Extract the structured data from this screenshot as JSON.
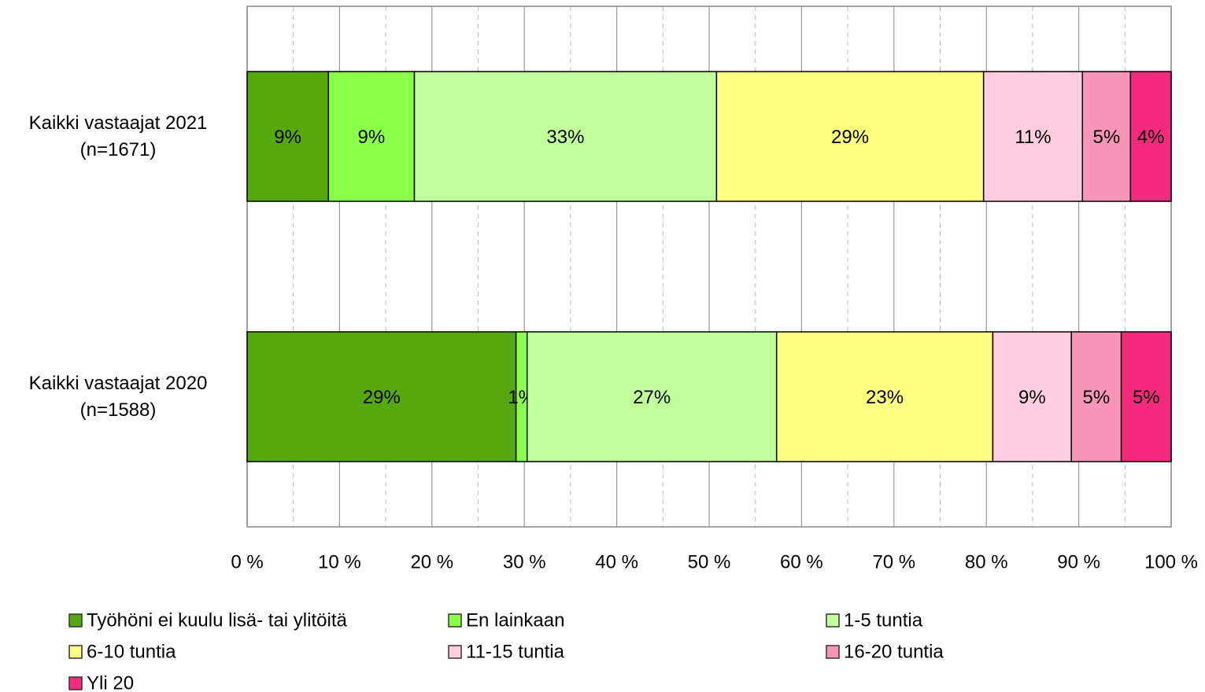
{
  "chart_data": {
    "type": "stacked_barh",
    "categories": [
      "Kaikki vastaajat 2021\n(n=1671)",
      "Kaikki vastaajat 2020\n(n=1588)"
    ],
    "series": [
      {
        "name": "Työhöni ei kuulu lisä- tai ylitöitä",
        "color": "#56a80f",
        "values": [
          8.8,
          29.1
        ],
        "value_labels": [
          "9%",
          "29%"
        ]
      },
      {
        "name": "En lainkaan",
        "color": "#8aff4a",
        "values": [
          9.3,
          1.2
        ],
        "value_labels": [
          "9%",
          "1%"
        ]
      },
      {
        "name": "1-5 tuntia",
        "color": "#c0ff9a",
        "values": [
          32.7,
          27.0
        ],
        "value_labels": [
          "33%",
          "27%"
        ]
      },
      {
        "name": "6-10 tuntia",
        "color": "#ffff80",
        "values": [
          28.9,
          23.4
        ],
        "value_labels": [
          "29%",
          "23%"
        ]
      },
      {
        "name": "11-15 tuntia",
        "color": "#ffcce0",
        "values": [
          10.7,
          8.5
        ],
        "value_labels": [
          "11%",
          "9%"
        ]
      },
      {
        "name": "16-20 tuntia",
        "color": "#f895b8",
        "values": [
          5.2,
          5.4
        ],
        "value_labels": [
          "5%",
          "5%"
        ]
      },
      {
        "name": "Yli 20",
        "color": "#f52a7c",
        "values": [
          4.4,
          5.4
        ],
        "value_labels": [
          "4%",
          "5%"
        ]
      }
    ],
    "xlim": [
      0,
      100
    ],
    "xticks": [
      {
        "value": 0,
        "label": "0 %"
      },
      {
        "value": 10,
        "label": "10 %"
      },
      {
        "value": 20,
        "label": "20 %"
      },
      {
        "value": 30,
        "label": "30 %"
      },
      {
        "value": 40,
        "label": "40 %"
      },
      {
        "value": 50,
        "label": "50 %"
      },
      {
        "value": 60,
        "label": "60 %"
      },
      {
        "value": 70,
        "label": "70 %"
      },
      {
        "value": 80,
        "label": "80 %"
      },
      {
        "value": 90,
        "label": "90 %"
      },
      {
        "value": 100,
        "label": "100 %"
      }
    ],
    "minor_xticks": [
      5,
      15,
      25,
      35,
      45,
      55,
      65,
      75,
      85,
      95
    ],
    "grid": true,
    "legend": "bottom"
  }
}
